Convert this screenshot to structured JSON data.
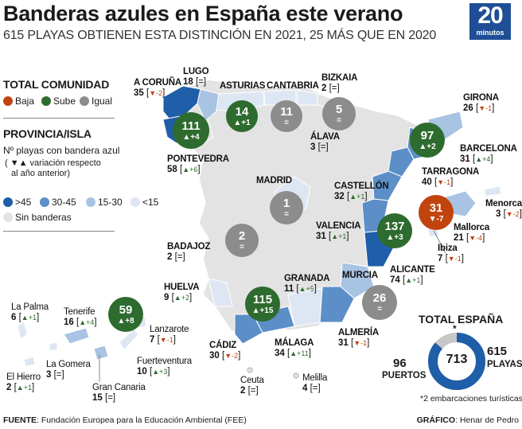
{
  "header": {
    "title": "Banderas azules en España este verano",
    "subtitle": "615 PLAYAS OBTIENEN ESTA DISTINCIÓN EN 2021, 25 MÁS QUE EN 2020",
    "brand_number": "20",
    "brand_word": "minutos"
  },
  "legend": {
    "comunidad_title": "TOTAL COMUNIDAD",
    "baja": "Baja",
    "sube": "Sube",
    "igual": "Igual",
    "provincia_title": "PROVINCIA/ISLA",
    "n_line": "Nº playas con bandera azul",
    "var_line1": "( ▼▲ variación respecto",
    "var_line2": "al año anterior)",
    "r1": ">45",
    "r2": "30-45",
    "r3": "15-30",
    "r4": "<15",
    "none": "Sin banderas"
  },
  "colors": {
    "baja": "#c1440e",
    "sube": "#2e6b2e",
    "igual": "#8c8c8c",
    "r1": "#1f5ea8",
    "r2": "#5c8ec7",
    "r3": "#a9c3e3",
    "r4": "#dde7f3",
    "none": "#e3e3e3"
  },
  "communities": [
    {
      "id": "galicia",
      "value": "111",
      "change": "▲+4",
      "trend": "sube"
    },
    {
      "id": "asturias",
      "value": "14",
      "change": "▲+1",
      "trend": "sube"
    },
    {
      "id": "cantabria",
      "value": "11",
      "change": "=",
      "trend": "igual"
    },
    {
      "id": "paisvasco",
      "value": "5",
      "change": "=",
      "trend": "igual"
    },
    {
      "id": "cataluna",
      "value": "97",
      "change": "▲+2",
      "trend": "sube"
    },
    {
      "id": "madrid",
      "value": "1",
      "change": "=",
      "trend": "igual"
    },
    {
      "id": "extremadura",
      "value": "2",
      "change": "=",
      "trend": "igual"
    },
    {
      "id": "valenciana",
      "value": "137",
      "change": "▲+3",
      "trend": "sube"
    },
    {
      "id": "baleares",
      "value": "31",
      "change": "▼-7",
      "trend": "baja"
    },
    {
      "id": "andalucia",
      "value": "115",
      "change": "▲+15",
      "trend": "sube"
    },
    {
      "id": "murcia",
      "value": "26",
      "change": "=",
      "trend": "igual"
    },
    {
      "id": "canarias",
      "value": "59",
      "change": "▲+8",
      "trend": "sube"
    }
  ],
  "provinces": [
    {
      "id": "acoruna",
      "name": "A CORUÑA",
      "value": "35",
      "change": "▼-2",
      "dir": "dn"
    },
    {
      "id": "lugo",
      "name": "LUGO",
      "value": "18",
      "change": "=",
      "dir": "eq"
    },
    {
      "id": "asturias",
      "name": "ASTURIAS",
      "value": "",
      "change": "",
      "dir": "none"
    },
    {
      "id": "cantabria",
      "name": "CANTABRIA",
      "value": "",
      "change": "",
      "dir": "none"
    },
    {
      "id": "bizkaia",
      "name": "BIZKAIA",
      "value": "2",
      "change": "=",
      "dir": "eq"
    },
    {
      "id": "girona",
      "name": "GIRONA",
      "value": "26",
      "change": "▼-1",
      "dir": "dn"
    },
    {
      "id": "pontevedra",
      "name": "PONTEVEDRA",
      "value": "58",
      "change": "▲+6",
      "dir": "up"
    },
    {
      "id": "alava",
      "name": "ÁLAVA",
      "value": "3",
      "change": "=",
      "dir": "eq"
    },
    {
      "id": "barcelona",
      "name": "BARCELONA",
      "value": "31",
      "change": "▲+4",
      "dir": "up"
    },
    {
      "id": "tarragona",
      "name": "TARRAGONA",
      "value": "40",
      "change": "▼-1",
      "dir": "dn"
    },
    {
      "id": "madrid",
      "name": "MADRID",
      "value": "",
      "change": "",
      "dir": "none"
    },
    {
      "id": "castellon",
      "name": "CASTELLÓN",
      "value": "32",
      "change": "▲+1",
      "dir": "up"
    },
    {
      "id": "menorca",
      "name": "Menorca",
      "value": "3",
      "change": "▼-2",
      "dir": "dn"
    },
    {
      "id": "mallorca",
      "name": "Mallorca",
      "value": "21",
      "change": "▼-4",
      "dir": "dn"
    },
    {
      "id": "ibiza",
      "name": "Ibiza",
      "value": "7",
      "change": "▼-1",
      "dir": "dn"
    },
    {
      "id": "valencia",
      "name": "VALENCIA",
      "value": "31",
      "change": "▲+1",
      "dir": "up"
    },
    {
      "id": "badajoz",
      "name": "BADAJOZ",
      "value": "2",
      "change": "=",
      "dir": "eq"
    },
    {
      "id": "alicante",
      "name": "ALICANTE",
      "value": "74",
      "change": "▲+1",
      "dir": "up"
    },
    {
      "id": "huelva",
      "name": "HUELVA",
      "value": "9",
      "change": "▲+2",
      "dir": "up"
    },
    {
      "id": "granada",
      "name": "GRANADA",
      "value": "11",
      "change": "▲+5",
      "dir": "up"
    },
    {
      "id": "murcia",
      "name": "MURCIA",
      "value": "",
      "change": "",
      "dir": "none"
    },
    {
      "id": "lapalma",
      "name": "La Palma",
      "value": "6",
      "change": "▲+1",
      "dir": "up"
    },
    {
      "id": "tenerife",
      "name": "Tenerife",
      "value": "16",
      "change": "▲+4",
      "dir": "up"
    },
    {
      "id": "lanzarote",
      "name": "Lanzarote",
      "value": "7",
      "change": "▼-1",
      "dir": "dn"
    },
    {
      "id": "lagomera",
      "name": "La Gomera",
      "value": "3",
      "change": "=",
      "dir": "eq"
    },
    {
      "id": "fuerteventura",
      "name": "Fuerteventura",
      "value": "10",
      "change": "▲+3",
      "dir": "up"
    },
    {
      "id": "elhierro",
      "name": "El Hierro",
      "value": "2",
      "change": "▲+1",
      "dir": "up"
    },
    {
      "id": "grancanaria",
      "name": "Gran Canaria",
      "value": "15",
      "change": "=",
      "dir": "eq"
    },
    {
      "id": "cadiz",
      "name": "CÁDIZ",
      "value": "30",
      "change": "▼-2",
      "dir": "dn"
    },
    {
      "id": "malaga",
      "name": "MÁLAGA",
      "value": "34",
      "change": "▲+11",
      "dir": "up"
    },
    {
      "id": "almeria",
      "name": "ALMERÍA",
      "value": "31",
      "change": "▼-1",
      "dir": "dn"
    },
    {
      "id": "ceuta",
      "name": "Ceuta",
      "value": "2",
      "change": "=",
      "dir": "eq"
    },
    {
      "id": "melilla",
      "name": "Melilla",
      "value": "4",
      "change": "=",
      "dir": "eq"
    }
  ],
  "total": {
    "title": "TOTAL ESPAÑA",
    "center": "713",
    "puertos_value": "96",
    "puertos_label": "PUERTOS",
    "playas_value": "615",
    "playas_label": "PLAYAS",
    "asterisk": "*",
    "note": "*2 embarcaciones turísticas"
  },
  "chart_data": {
    "type": "pie",
    "title": "TOTAL ESPAÑA",
    "categories": [
      "PLAYAS",
      "PUERTOS",
      "embarcaciones turísticas"
    ],
    "values": [
      615,
      96,
      2
    ],
    "total": 713
  },
  "footer": {
    "fuente_label": "FUENTE",
    "fuente_text": ": Fundación Europea para la Educación Ambiental (FEE)",
    "grafico_label": "GRÁFICO",
    "grafico_text": ": Henar de Pedro"
  }
}
